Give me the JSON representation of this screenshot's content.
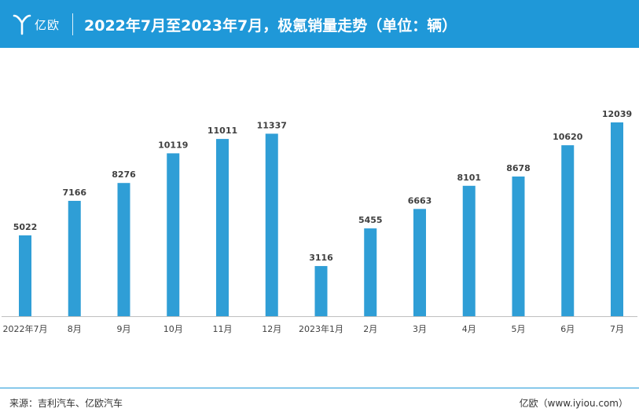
{
  "header": {
    "logo_text": "亿欧",
    "title": "2022年7月至2023年7月，极氪销量走势（单位：辆）",
    "background": "#1f98d8"
  },
  "chart_data": {
    "type": "bar",
    "title": "2022年7月至2023年7月，极氪销量走势（单位：辆）",
    "unit": "辆",
    "categories": [
      "2022年7月",
      "8月",
      "9月",
      "10月",
      "11月",
      "12月",
      "2023年1月",
      "2月",
      "3月",
      "4月",
      "5月",
      "6月",
      "7月"
    ],
    "values": [
      5022,
      7166,
      8276,
      10119,
      11011,
      11337,
      3116,
      5455,
      6663,
      8101,
      8678,
      10620,
      12039
    ],
    "bar_color": "#2f9ed6",
    "xlabel": "",
    "ylabel": "",
    "ylim": [
      0,
      12039
    ],
    "grid": false,
    "legend": "none"
  },
  "footer": {
    "source": "来源：吉利汽车、亿欧汽车",
    "brand": "亿欧（www.iyiou.com）"
  }
}
